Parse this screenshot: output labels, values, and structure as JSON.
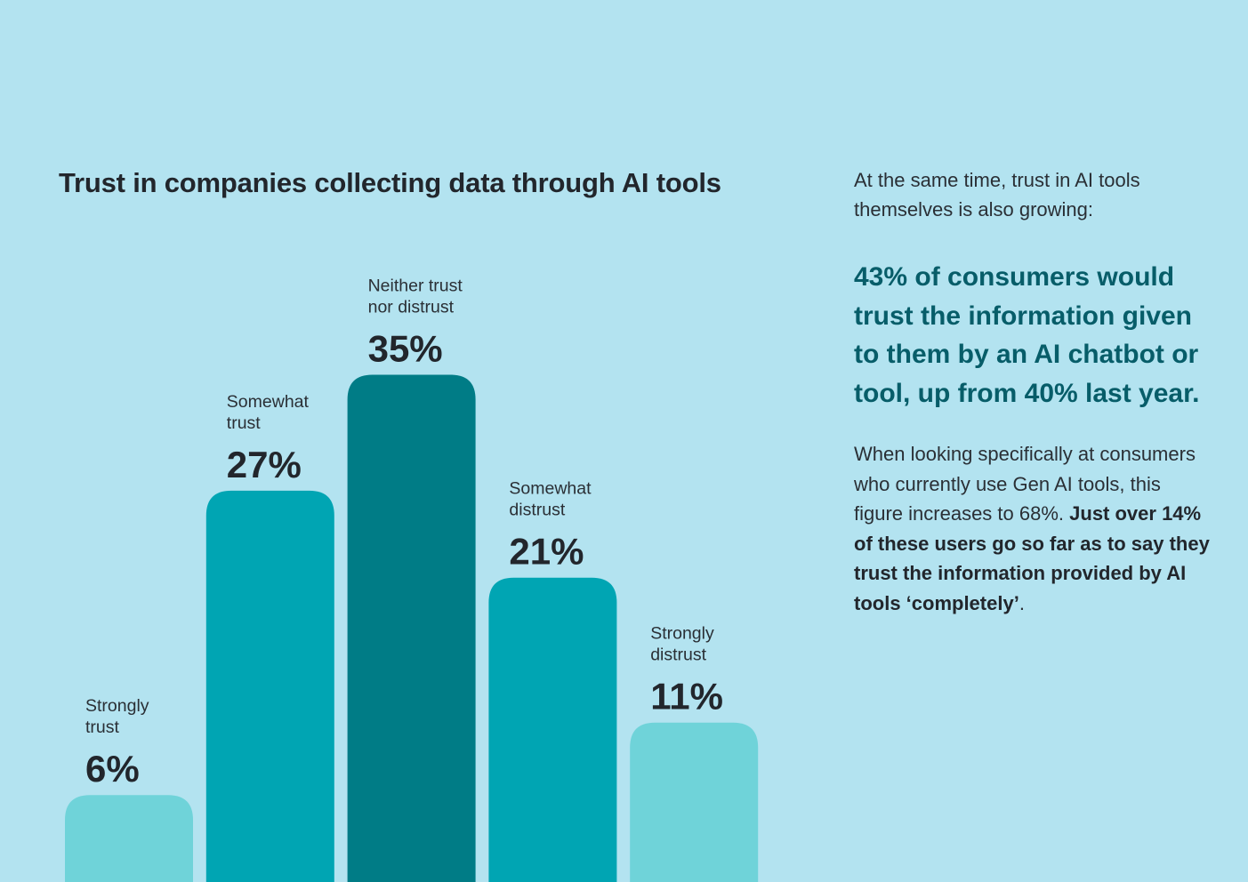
{
  "chart_data": {
    "type": "bar",
    "title": "Trust in companies collecting data through AI tools",
    "categories": [
      [
        "Strongly",
        "trust"
      ],
      [
        "Somewhat",
        "trust"
      ],
      [
        "Neither trust",
        "nor distrust"
      ],
      [
        "Somewhat",
        "distrust"
      ],
      [
        "Strongly",
        "distrust"
      ]
    ],
    "values": [
      6,
      27,
      35,
      21,
      11
    ],
    "value_labels": [
      "6%",
      "27%",
      "35%",
      "21%",
      "11%"
    ],
    "bar_colors": [
      "#6fd3d9",
      "#00a5b3",
      "#007c86",
      "#00a5b3",
      "#6fd3d9"
    ],
    "unit": "%",
    "xlabel": "",
    "ylabel": "",
    "grid": false,
    "legend": "none"
  },
  "side": {
    "intro": "At the same time, trust in AI tools themselves is also growing:",
    "highlight": "43% of consumers would trust the information given to them by an AI chatbot or tool, up from 40% last year.",
    "body_plain": "When looking specifically at consumers who currently use Gen AI tools, this figure increases to 68%. ",
    "body_bold": "Just over 14% of these users go so far as to say they trust the information provided by AI tools ‘completely’",
    "body_end": "."
  },
  "colors": {
    "background": "#b3e3f0",
    "text": "#22262c",
    "highlight": "#075d69"
  }
}
